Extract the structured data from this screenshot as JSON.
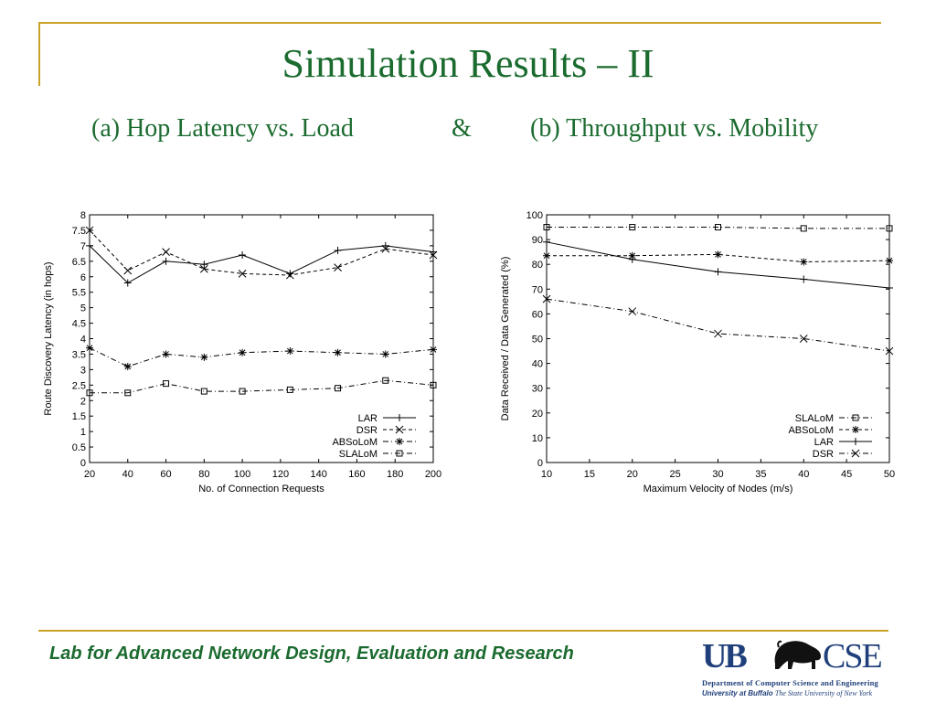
{
  "slide": {
    "title": "Simulation Results – II",
    "subtitle_a": "(a) Hop Latency vs. Load",
    "subtitle_amp": "&",
    "subtitle_b": "(b) Throughput vs. Mobility",
    "footer": "Lab for Advanced Network Design, Evaluation and Research",
    "logo": {
      "ub": "UB",
      "cse": "CSE",
      "dept": "Department of Computer Science and Engineering",
      "univ_bold": "University at Buffalo",
      "univ_rest": "The State University of New York"
    }
  },
  "colors": {
    "accent": "#c9a227",
    "title": "#1b6b2f",
    "logo": "#1f3f7a"
  },
  "chart_data": [
    {
      "type": "line",
      "xlabel": "No. of Connection Requests",
      "ylabel": "Route Discovery Latency (in hops)",
      "xlim": [
        20,
        200
      ],
      "ylim": [
        0,
        8
      ],
      "xticks": [
        20,
        40,
        60,
        80,
        100,
        120,
        140,
        160,
        180,
        200
      ],
      "yticks": [
        0,
        0.5,
        1,
        1.5,
        2,
        2.5,
        3,
        3.5,
        4,
        4.5,
        5,
        5.5,
        6,
        6.5,
        7,
        7.5,
        8
      ],
      "x": [
        20,
        40,
        60,
        80,
        100,
        125,
        150,
        175,
        200
      ],
      "grid": false,
      "legend_position": "bottom-right",
      "series": [
        {
          "name": "LAR",
          "marker": "plus",
          "dash": "solid",
          "values": [
            7.0,
            5.8,
            6.5,
            6.4,
            6.7,
            6.1,
            6.85,
            7.0,
            6.8
          ]
        },
        {
          "name": "DSR",
          "marker": "x",
          "dash": "dashed",
          "values": [
            7.5,
            6.2,
            6.8,
            6.25,
            6.1,
            6.05,
            6.3,
            6.9,
            6.7
          ]
        },
        {
          "name": "ABSoLoM",
          "marker": "star",
          "dash": "dashdot",
          "values": [
            3.7,
            3.1,
            3.5,
            3.4,
            3.55,
            3.6,
            3.55,
            3.5,
            3.65
          ]
        },
        {
          "name": "SLALoM",
          "marker": "square",
          "dash": "dashdot",
          "values": [
            2.25,
            2.25,
            2.55,
            2.3,
            2.3,
            2.35,
            2.4,
            2.65,
            2.5
          ]
        }
      ]
    },
    {
      "type": "line",
      "xlabel": "Maximum Velocity of Nodes (m/s)",
      "ylabel": "Data Received / Data Generated (%)",
      "xlim": [
        10,
        50
      ],
      "ylim": [
        0,
        100
      ],
      "xticks": [
        10,
        15,
        20,
        25,
        30,
        35,
        40,
        45,
        50
      ],
      "yticks": [
        0,
        10,
        20,
        30,
        40,
        50,
        60,
        70,
        80,
        90,
        100
      ],
      "x": [
        10,
        20,
        30,
        40,
        50
      ],
      "grid": false,
      "legend_position": "bottom-right",
      "series": [
        {
          "name": "SLALoM",
          "marker": "square",
          "dash": "dashdot",
          "values": [
            95,
            95,
            95,
            94.5,
            94.5
          ]
        },
        {
          "name": "ABSoLoM",
          "marker": "star",
          "dash": "dashed",
          "values": [
            83.5,
            83.5,
            84,
            81,
            81.5
          ]
        },
        {
          "name": "LAR",
          "marker": "plus",
          "dash": "solid",
          "values": [
            89,
            82,
            77,
            74,
            70.5
          ]
        },
        {
          "name": "DSR",
          "marker": "x",
          "dash": "dashdot",
          "values": [
            66,
            61,
            52,
            50,
            45
          ]
        }
      ]
    }
  ]
}
